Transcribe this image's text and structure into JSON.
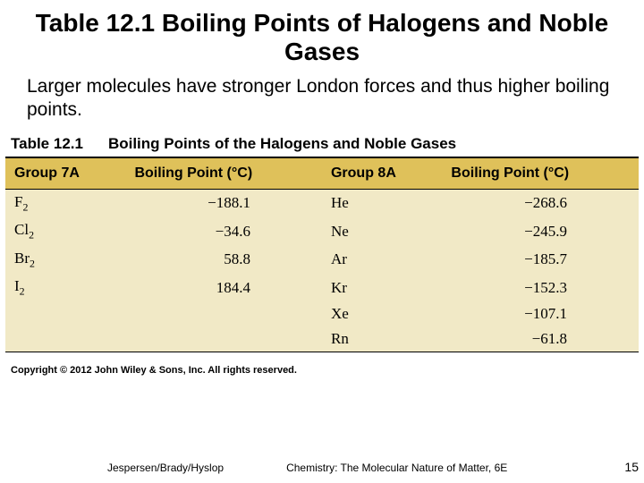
{
  "title": "Table 12.1 Boiling Points of Halogens and Noble Gases",
  "subtitle": "Larger molecules have stronger London forces and thus higher boiling points.",
  "table": {
    "label": "Table 12.1",
    "caption": "Boiling Points of the Halogens and Noble Gases",
    "header_bg": "#dfc15a",
    "body_bg": "#f1e9c6",
    "columns": [
      "Group 7A",
      "Boiling Point (°C)",
      "Group 8A",
      "Boiling Point (°C)"
    ],
    "rows": [
      {
        "g7a": "F",
        "g7a_sub": "2",
        "bp7": "−188.1",
        "g8a": "He",
        "bp8": "−268.6"
      },
      {
        "g7a": "Cl",
        "g7a_sub": "2",
        "bp7": "−34.6",
        "g8a": "Ne",
        "bp8": "−245.9"
      },
      {
        "g7a": "Br",
        "g7a_sub": "2",
        "bp7": "58.8",
        "g8a": "Ar",
        "bp8": "−185.7"
      },
      {
        "g7a": "I",
        "g7a_sub": "2",
        "bp7": "184.4",
        "g8a": "Kr",
        "bp8": "−152.3"
      },
      {
        "g7a": "",
        "g7a_sub": "",
        "bp7": "",
        "g8a": "Xe",
        "bp8": "−107.1"
      },
      {
        "g7a": "",
        "g7a_sub": "",
        "bp7": "",
        "g8a": "Rn",
        "bp8": "−61.8"
      }
    ]
  },
  "copyright": "Copyright © 2012 John Wiley & Sons, Inc. All rights reserved.",
  "footer": {
    "authors": "Jespersen/Brady/Hyslop",
    "book": "Chemistry: The Molecular Nature of Matter, 6E",
    "page": "15"
  }
}
